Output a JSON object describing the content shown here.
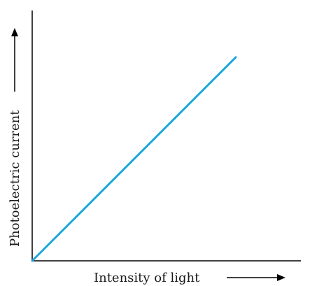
{
  "chart_data": {
    "type": "line",
    "title": "",
    "xlabel": "Intensity of light",
    "ylabel": "Photoelectric current",
    "x": [
      0,
      1
    ],
    "series": [
      {
        "values": [
          0,
          1
        ],
        "color": "#1aa7dc"
      }
    ],
    "xlim": [
      0,
      1.32
    ],
    "ylim": [
      0,
      1.23
    ],
    "grid": false,
    "axis_arrows": true,
    "colors": {
      "axis": "#000000",
      "line": "#1aa7dc"
    }
  }
}
